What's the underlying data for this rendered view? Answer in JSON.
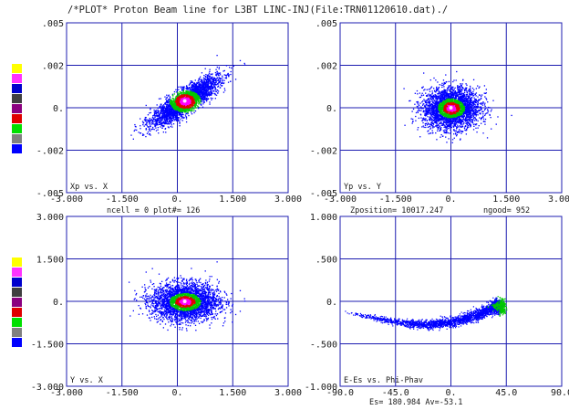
{
  "title": "/*PLOT*  Proton Beam line for L3BT LINC-INJ(File:TRN01120610.dat)./",
  "colors": {
    "axis": "#1c1cb0",
    "core": "#ff00ff",
    "ring_red": "#e00000",
    "ring_green": "#00c800",
    "halo": "#0000ff",
    "legend": [
      "#ffff00",
      "#ff33ff",
      "#0000cc",
      "#404040",
      "#8b0080",
      "#e00000",
      "#00e000",
      "#808080",
      "#0000ff"
    ]
  },
  "labels": {
    "ncell": "ncell =      0  plot#=    126",
    "zposition": "Zposition= 10017.247",
    "ngood": "ngood=    952",
    "es": "Es= 180.984 Av=-53.1"
  },
  "chart_data": [
    {
      "type": "scatter",
      "name": "xp-x",
      "label": "Xp vs. X",
      "xlim": [
        -3.0,
        3.0
      ],
      "ylim": [
        -0.005,
        0.005
      ],
      "xticks": [
        "-3.000",
        "-1.500",
        "0.",
        "1.500",
        "3.000"
      ],
      "yticks": [
        ".005",
        ".002",
        "0.",
        "-.002",
        "-.005"
      ],
      "center": [
        0.2,
        0.0004
      ],
      "spread": [
        0.45,
        0.0007
      ],
      "correlation": 0.85,
      "grid": true
    },
    {
      "type": "scatter",
      "name": "yp-y",
      "label": "Yp vs. Y",
      "xlim": [
        -3.0,
        3.0
      ],
      "ylim": [
        -0.005,
        0.005
      ],
      "xticks": [
        "-3.000",
        "-1.500",
        "0.",
        "1.500",
        "3.000"
      ],
      "yticks": [
        ".005",
        ".002",
        "0.",
        "-.002",
        "-.005"
      ],
      "center": [
        0.0,
        0.0
      ],
      "spread": [
        0.38,
        0.0006
      ],
      "correlation": 0.05,
      "grid": true
    },
    {
      "type": "scatter",
      "name": "y-x",
      "label": "Y vs. X",
      "xlim": [
        -3.0,
        3.0
      ],
      "ylim": [
        -3.0,
        3.0
      ],
      "xticks": [
        "-3.000",
        "-1.500",
        "0.",
        "1.500",
        "3.000"
      ],
      "yticks": [
        "3.000",
        "1.500",
        "0.",
        "-1.500",
        "-3.000"
      ],
      "center": [
        0.2,
        0.0
      ],
      "spread": [
        0.45,
        0.33
      ],
      "correlation": 0.0,
      "grid": true
    },
    {
      "type": "scatter",
      "name": "e-phi",
      "label": "E-Es vs. Phi-Phav",
      "xlim": [
        -90.0,
        90.0
      ],
      "ylim": [
        -1.0,
        1.0
      ],
      "xticks": [
        "-90.0",
        "-45.0",
        "0.",
        "45.0",
        "90.0"
      ],
      "yticks": [
        "1.000",
        ".500",
        "0.",
        "-.500",
        "-1.000"
      ],
      "curve": [
        [
          -85,
          -0.13
        ],
        [
          -60,
          -0.2
        ],
        [
          -40,
          -0.25
        ],
        [
          -20,
          -0.27
        ],
        [
          0,
          -0.24
        ],
        [
          20,
          -0.16
        ],
        [
          35,
          -0.06
        ],
        [
          42,
          -0.05
        ]
      ],
      "grid": true
    }
  ]
}
